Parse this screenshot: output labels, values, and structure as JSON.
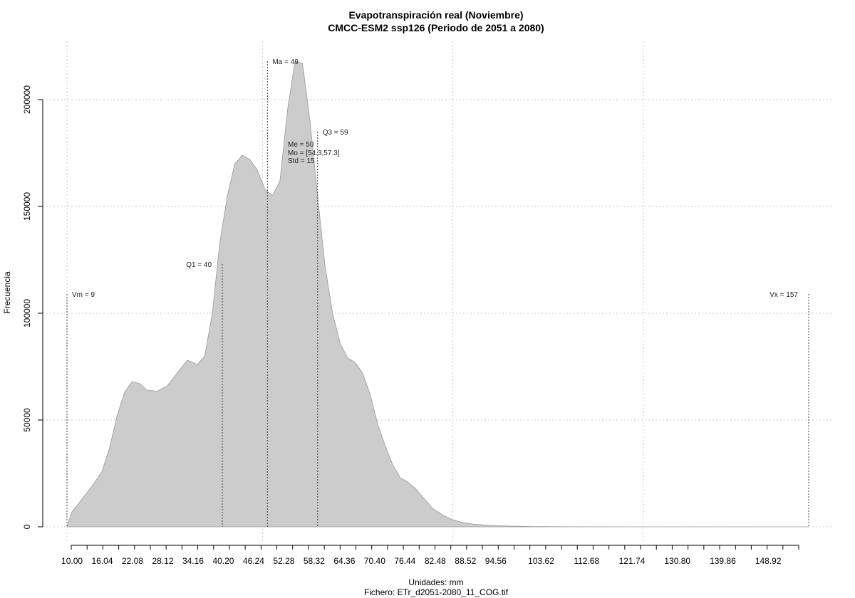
{
  "chart_data": {
    "type": "area",
    "title": "Evapotranspiración real (Noviembre)",
    "subtitle": "CMCC-ESM2 ssp126 (Periodo de 2051 a 2080)",
    "xlabel": "Unidades: mm",
    "footer": "Fichero: ETr_d2051-2080_11_COG.tif",
    "ylabel": "Frecuencia",
    "xlim": [
      9,
      157
    ],
    "ylim": [
      0,
      220000
    ],
    "x_tick_labels": [
      "10.00",
      "16.04",
      "22.08",
      "28.12",
      "34.16",
      "40.20",
      "46.24",
      "52.28",
      "58.32",
      "64.36",
      "70.40",
      "76.44",
      "82.48",
      "88.52",
      "94.56",
      "103.62",
      "112.68",
      "121.74",
      "130.80",
      "139.86",
      "148.92"
    ],
    "y_tick_labels": [
      "0",
      "50000",
      "100000",
      "150000",
      "200000"
    ],
    "y_ticks": [
      0,
      50000,
      100000,
      150000,
      200000
    ],
    "grid": true,
    "fill_color": "#cccccc",
    "line_color": "#999999",
    "density": {
      "x": [
        9.0,
        10.0,
        12.0,
        14.0,
        16.0,
        17.5,
        19.0,
        20.5,
        22.0,
        23.5,
        25.0,
        27.0,
        29.0,
        31.0,
        33.0,
        35.0,
        36.5,
        38.0,
        39.5,
        41.0,
        42.5,
        44.0,
        45.5,
        47.0,
        48.5,
        50.0,
        51.5,
        53.0,
        54.5,
        56.0,
        57.5,
        59.0,
        60.5,
        62.0,
        63.5,
        65.0,
        66.5,
        68.0,
        69.5,
        71.0,
        72.5,
        74.0,
        75.5,
        77.0,
        78.5,
        80.0,
        82.0,
        84.0,
        86.0,
        88.0,
        90.0,
        92.0,
        95.0,
        98.0,
        102.0,
        106.0,
        110.0,
        120.0,
        135.0,
        150.0,
        157.0
      ],
      "y": [
        0,
        7000,
        13000,
        19000,
        26000,
        37000,
        52000,
        63000,
        68000,
        67000,
        64000,
        63500,
        66000,
        72000,
        78000,
        76000,
        80000,
        100000,
        133000,
        155000,
        170000,
        174000,
        172000,
        167000,
        158000,
        155000,
        162000,
        195000,
        218000,
        217000,
        190000,
        155000,
        122000,
        100000,
        86000,
        79000,
        77000,
        72000,
        62000,
        48000,
        38000,
        29000,
        23000,
        21000,
        18000,
        14000,
        8500,
        5500,
        3200,
        2000,
        1300,
        900,
        500,
        300,
        120,
        60,
        20,
        5,
        0,
        0,
        0
      ]
    },
    "markers": [
      {
        "label": "Vm = 9",
        "x": 9,
        "top": 109000,
        "label_side": "right"
      },
      {
        "label": "Q1 = 40",
        "x": 40,
        "top": 123000,
        "label_side": "left"
      },
      {
        "label": "Ma = 49",
        "x": 49,
        "top": 218000,
        "label_side": "right"
      },
      {
        "label": "Q3 = 59",
        "x": 59,
        "top": 185000,
        "label_side": "right"
      },
      {
        "label": "Vx = 157",
        "x": 157,
        "top": 109000,
        "label_side": "left"
      }
    ],
    "stats_lines": [
      "Me = 50",
      "Mo = [54.3,57.3]",
      "Std = 15"
    ]
  }
}
